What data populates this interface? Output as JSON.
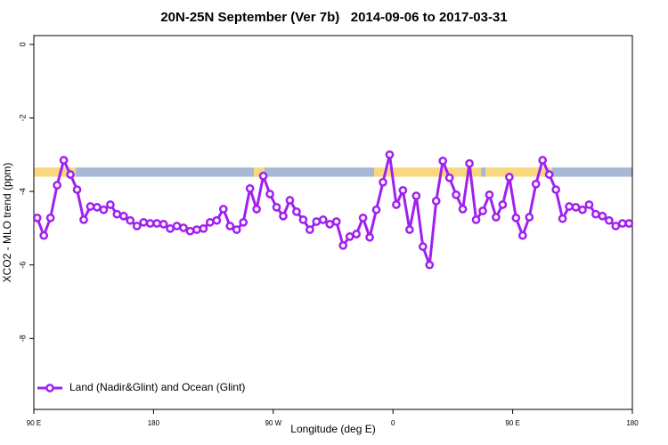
{
  "chart_data": {
    "type": "line",
    "title": "20N-25N September (Ver 7b)   2014-09-06 to 2017-03-31",
    "xlabel": "Longitude (deg E)",
    "ylabel": "XCO2 - MLO trend (ppm)",
    "xlim": [
      90,
      540
    ],
    "ylim": [
      -9.93,
      0.24
    ],
    "xticks": [
      {
        "value": 90,
        "label": "90 E"
      },
      {
        "value": 180,
        "label": "180"
      },
      {
        "value": 270,
        "label": "90 W"
      },
      {
        "value": 360,
        "label": "0"
      },
      {
        "value": 450,
        "label": "90 E"
      },
      {
        "value": 540,
        "label": "180"
      }
    ],
    "yticks": [
      -8,
      -6,
      -4,
      -2,
      0
    ],
    "legend": "bottomleft",
    "strip": {
      "ymin": -3.6,
      "ymax": -3.35,
      "segments": [
        {
          "from": 90,
          "to": 121.5,
          "color": "#f8d77e"
        },
        {
          "from": 121.5,
          "to": 255.4,
          "color": "#a6b8d4"
        },
        {
          "from": 255.4,
          "to": 263.4,
          "color": "#f8d77e"
        },
        {
          "from": 263.4,
          "to": 345.8,
          "color": "#a6b8d4"
        },
        {
          "from": 345.8,
          "to": 426.2,
          "color": "#f8d77e"
        },
        {
          "from": 426.2,
          "to": 429.5,
          "color": "#a6b8d4"
        },
        {
          "from": 429.5,
          "to": 479.7,
          "color": "#f8d77e"
        },
        {
          "from": 479.7,
          "to": 540,
          "color": "#a6b8d4"
        }
      ]
    },
    "x": [
      92.5,
      97.5,
      102.5,
      107.5,
      112.5,
      117.5,
      122.5,
      127.5,
      132.5,
      137.5,
      142.5,
      147.5,
      152.5,
      157.5,
      162.5,
      167.5,
      172.5,
      177.5,
      182.5,
      187.5,
      192.5,
      197.5,
      202.5,
      207.5,
      212.5,
      217.5,
      222.5,
      227.5,
      232.5,
      237.5,
      242.5,
      247.5,
      252.5,
      257.5,
      262.5,
      267.5,
      272.5,
      277.5,
      282.5,
      287.5,
      292.5,
      297.5,
      302.5,
      307.5,
      312.5,
      317.5,
      322.5,
      327.5,
      332.5,
      337.5,
      342.5,
      347.5,
      352.5,
      357.5,
      362.5,
      367.5,
      372.5,
      377.5,
      382.5,
      387.5,
      392.5,
      397.5,
      402.5,
      407.5,
      412.5,
      417.5,
      422.5,
      427.5,
      432.5,
      437.5,
      442.5,
      447.5,
      452.5,
      457.5,
      462.5,
      467.5,
      472.5,
      477.5,
      482.5,
      487.5,
      492.5,
      497.5,
      502.5,
      507.5,
      512.5,
      517.5,
      522.5,
      527.5,
      532.5,
      537.5
    ],
    "series": [
      {
        "name": "Land (Nadir&Glint) and Ocean (Glint)",
        "color": "#a020f0",
        "values": [
          -4.72,
          -5.2,
          -4.72,
          -3.83,
          -3.15,
          -3.54,
          -3.95,
          -4.77,
          -4.41,
          -4.43,
          -4.5,
          -4.36,
          -4.62,
          -4.67,
          -4.79,
          -4.94,
          -4.84,
          -4.87,
          -4.87,
          -4.89,
          -5.01,
          -4.94,
          -4.99,
          -5.08,
          -5.04,
          -5.01,
          -4.84,
          -4.79,
          -4.48,
          -4.94,
          -5.04,
          -4.84,
          -3.92,
          -4.48,
          -3.58,
          -4.07,
          -4.43,
          -4.67,
          -4.24,
          -4.55,
          -4.77,
          -5.04,
          -4.82,
          -4.77,
          -4.89,
          -4.82,
          -5.47,
          -5.23,
          -5.16,
          -4.72,
          -5.25,
          -4.5,
          -3.75,
          -3.0,
          -4.36,
          -3.97,
          -5.04,
          -4.12,
          -5.5,
          -6.0,
          -4.26,
          -3.17,
          -3.63,
          -4.09,
          -4.48,
          -3.24,
          -4.77,
          -4.53,
          -4.09,
          -4.7,
          -4.36,
          -3.61,
          -4.72,
          -5.2,
          -4.7,
          -3.8,
          -3.15,
          -3.54,
          -3.95,
          -4.74,
          -4.41,
          -4.43,
          -4.5,
          -4.36,
          -4.62,
          -4.67,
          -4.79,
          -4.94,
          -4.87,
          -4.87
        ]
      }
    ]
  }
}
